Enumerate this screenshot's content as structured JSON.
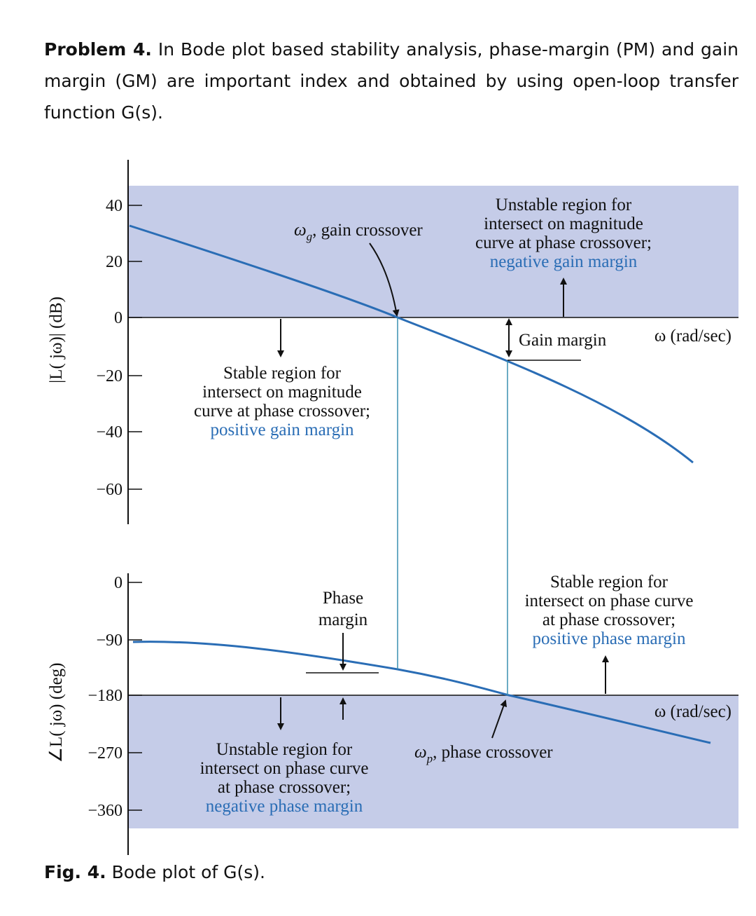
{
  "problem": {
    "label": "Problem 4.",
    "text": "In Bode plot based stability analysis, phase-margin (PM) and gain margin (GM) are important index and obtained by using open-loop transfer function G(s)."
  },
  "figure": {
    "magnitude_axis_label": "|L( jω)| (dB)",
    "phase_axis_label": "∠L( jω) (deg)",
    "magnitude_ticks": [
      "40",
      "20",
      "0",
      "−20",
      "−40",
      "−60"
    ],
    "phase_ticks": [
      "0",
      "−90",
      "−180",
      "−270",
      "−360"
    ],
    "gain_crossover": {
      "symbol": "ω",
      "subscript": "g",
      "text": ", gain crossover"
    },
    "phase_crossover": {
      "symbol": "ω",
      "subscript": "p",
      "text": ", phase crossover"
    },
    "gain_margin_label": "Gain margin",
    "frequency_label_magnitude": "ω (rad/sec)",
    "frequency_label_phase": "ω (rad/sec)",
    "phase_margin_label": [
      "Phase",
      "margin"
    ],
    "unstable_gain_region": [
      "Unstable region for",
      "intersect on magnitude",
      "curve at phase crossover;",
      "negative gain margin"
    ],
    "stable_gain_region": [
      "Stable region for",
      "intersect on magnitude",
      "curve at phase crossover;",
      "positive gain margin"
    ],
    "stable_phase_region": [
      "Stable region for",
      "intersect on phase curve",
      "at phase crossover;",
      "positive phase margin"
    ],
    "unstable_phase_region": [
      "Unstable region for",
      "intersect on phase curve",
      "at phase crossover;",
      "negative phase margin"
    ]
  },
  "caption": {
    "label": "Fig. 4.",
    "text": "Bode plot of G(s)."
  }
}
